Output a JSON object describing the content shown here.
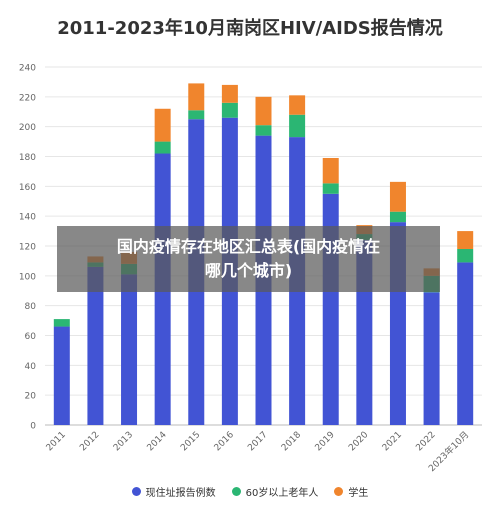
{
  "chart_data": {
    "type": "bar",
    "stacked": true,
    "title": "2011-2023年10月南岗区HIV/AIDS报告情况",
    "categories": [
      "2011",
      "2012",
      "2013",
      "2014",
      "2015",
      "2016",
      "2017",
      "2018",
      "2019",
      "2020",
      "2021",
      "2022",
      "2023年10月"
    ],
    "ylim": [
      0,
      240
    ],
    "yticks": [
      0,
      20,
      40,
      60,
      80,
      100,
      120,
      140,
      160,
      180,
      200,
      220,
      240
    ],
    "grid": true,
    "legend_position": "bottom",
    "series": [
      {
        "name": "现住址报告例数",
        "color": "#4254d4",
        "values": [
          66,
          106,
          101,
          182,
          205,
          206,
          194,
          193,
          155,
          124,
          136,
          89,
          109
        ]
      },
      {
        "name": "60岁以上老年人",
        "color": "#2bb673",
        "values": [
          5,
          3,
          7,
          8,
          6,
          10,
          7,
          15,
          7,
          4,
          7,
          11,
          9
        ]
      },
      {
        "name": "学生",
        "color": "#f0852d",
        "values": [
          0,
          4,
          8,
          22,
          18,
          12,
          19,
          13,
          17,
          6,
          20,
          5,
          12
        ]
      }
    ]
  },
  "overlay": {
    "line1": "国内疫情存在地区汇总表(国内疫情在",
    "line2": "哪几个城市)"
  }
}
